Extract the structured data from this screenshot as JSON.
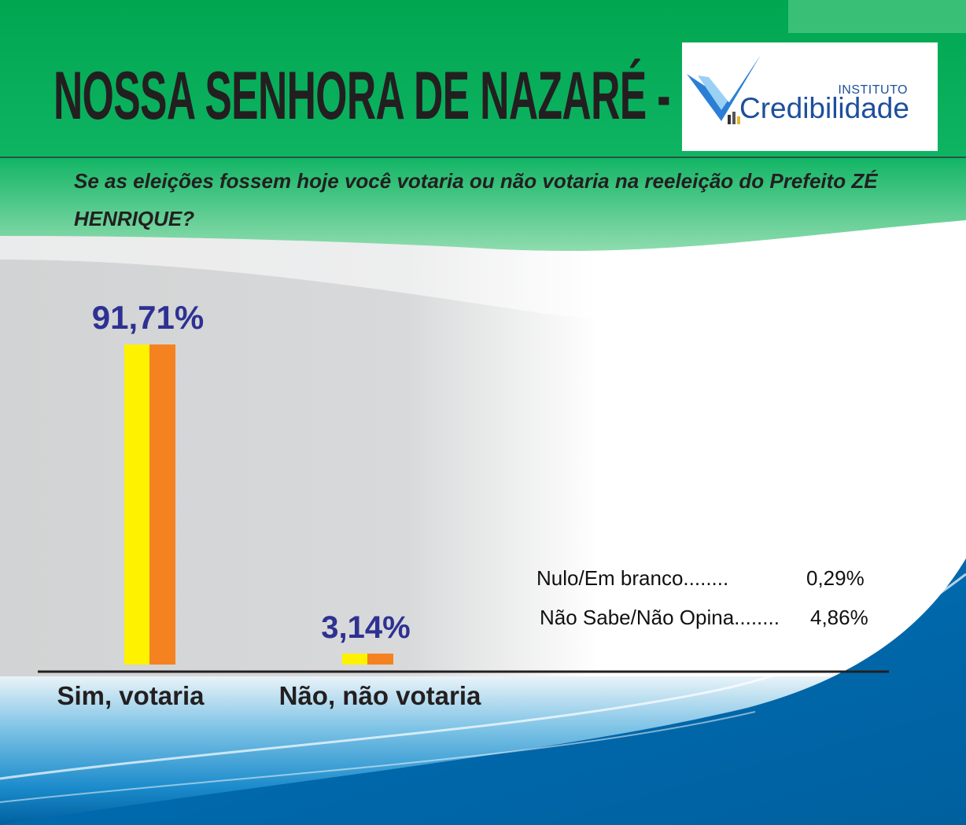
{
  "header": {
    "title": "NOSSA SENHORA DE NAZARÉ - PI",
    "logo_top": "INSTITUTO",
    "logo_main": "Credibilidade",
    "question": "Se as eleições fossem hoje você votaria ou não votaria na reeleição do Prefeito ZÉ HENRIQUE?"
  },
  "colors": {
    "bar_left": "#fff200",
    "bar_right": "#f58220",
    "value_label": "#2e3192",
    "green": "#00a650",
    "blue": "#0072bc"
  },
  "chart_data": {
    "type": "bar",
    "categories": [
      "Sim, votaria",
      "Não, não votaria"
    ],
    "values": [
      91.71,
      3.14
    ],
    "value_labels": [
      "91,71%",
      "3,14%"
    ],
    "ylim": [
      0,
      100
    ],
    "grid": false,
    "legend": "none"
  },
  "other_answers": [
    {
      "label": "Nulo/Em branco........",
      "value": "0,29%"
    },
    {
      "label": "Não Sabe/Não Opina........",
      "value": "4,86%"
    }
  ]
}
